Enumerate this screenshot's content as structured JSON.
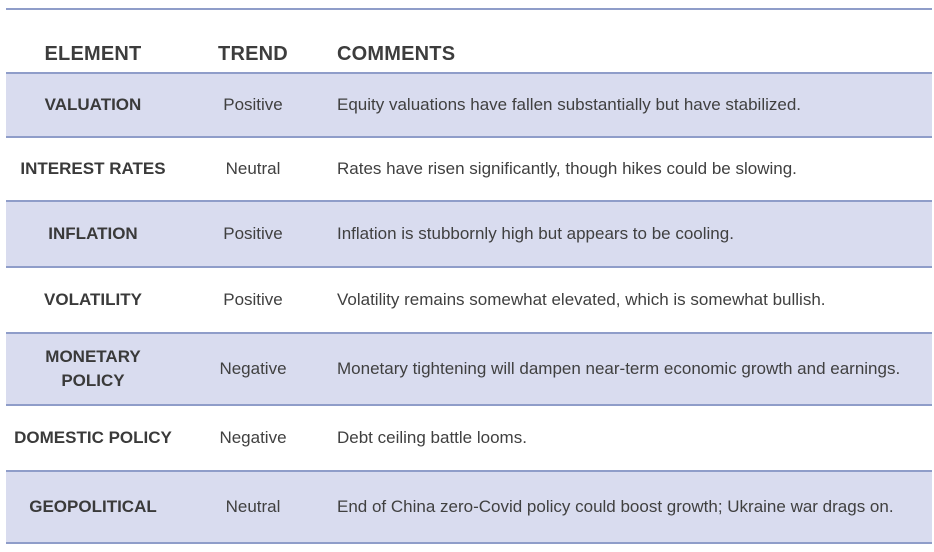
{
  "table": {
    "headers": {
      "element": "ELEMENT",
      "trend": "TREND",
      "comments": "COMMENTS"
    },
    "rows": [
      {
        "element": "VALUATION",
        "trend": "Positive",
        "comment": "Equity valuations have fallen substantially but have stabilized."
      },
      {
        "element": "INTEREST RATES",
        "trend": "Neutral",
        "comment": "Rates have risen significantly, though hikes could be slowing."
      },
      {
        "element": "INFLATION",
        "trend": "Positive",
        "comment": "Inflation is stubbornly high but appears to be cooling."
      },
      {
        "element": "VOLATILITY",
        "trend": "Positive",
        "comment": "Volatility remains somewhat elevated, which is somewhat bullish."
      },
      {
        "element": "MONETARY POLICY",
        "trend": "Negative",
        "comment": "Monetary tightening will dampen near-term economic growth and earnings."
      },
      {
        "element": "DOMESTIC POLICY",
        "trend": "Negative",
        "comment": "Debt ceiling battle looms."
      },
      {
        "element": "GEOPOLITICAL",
        "trend": "Neutral",
        "comment": "End of China zero-Covid policy could boost growth; Ukraine war drags on."
      }
    ]
  },
  "colors": {
    "shaded_row": "#d9dcef",
    "rule": "#8f9dc9",
    "text": "#3a3a3a"
  }
}
